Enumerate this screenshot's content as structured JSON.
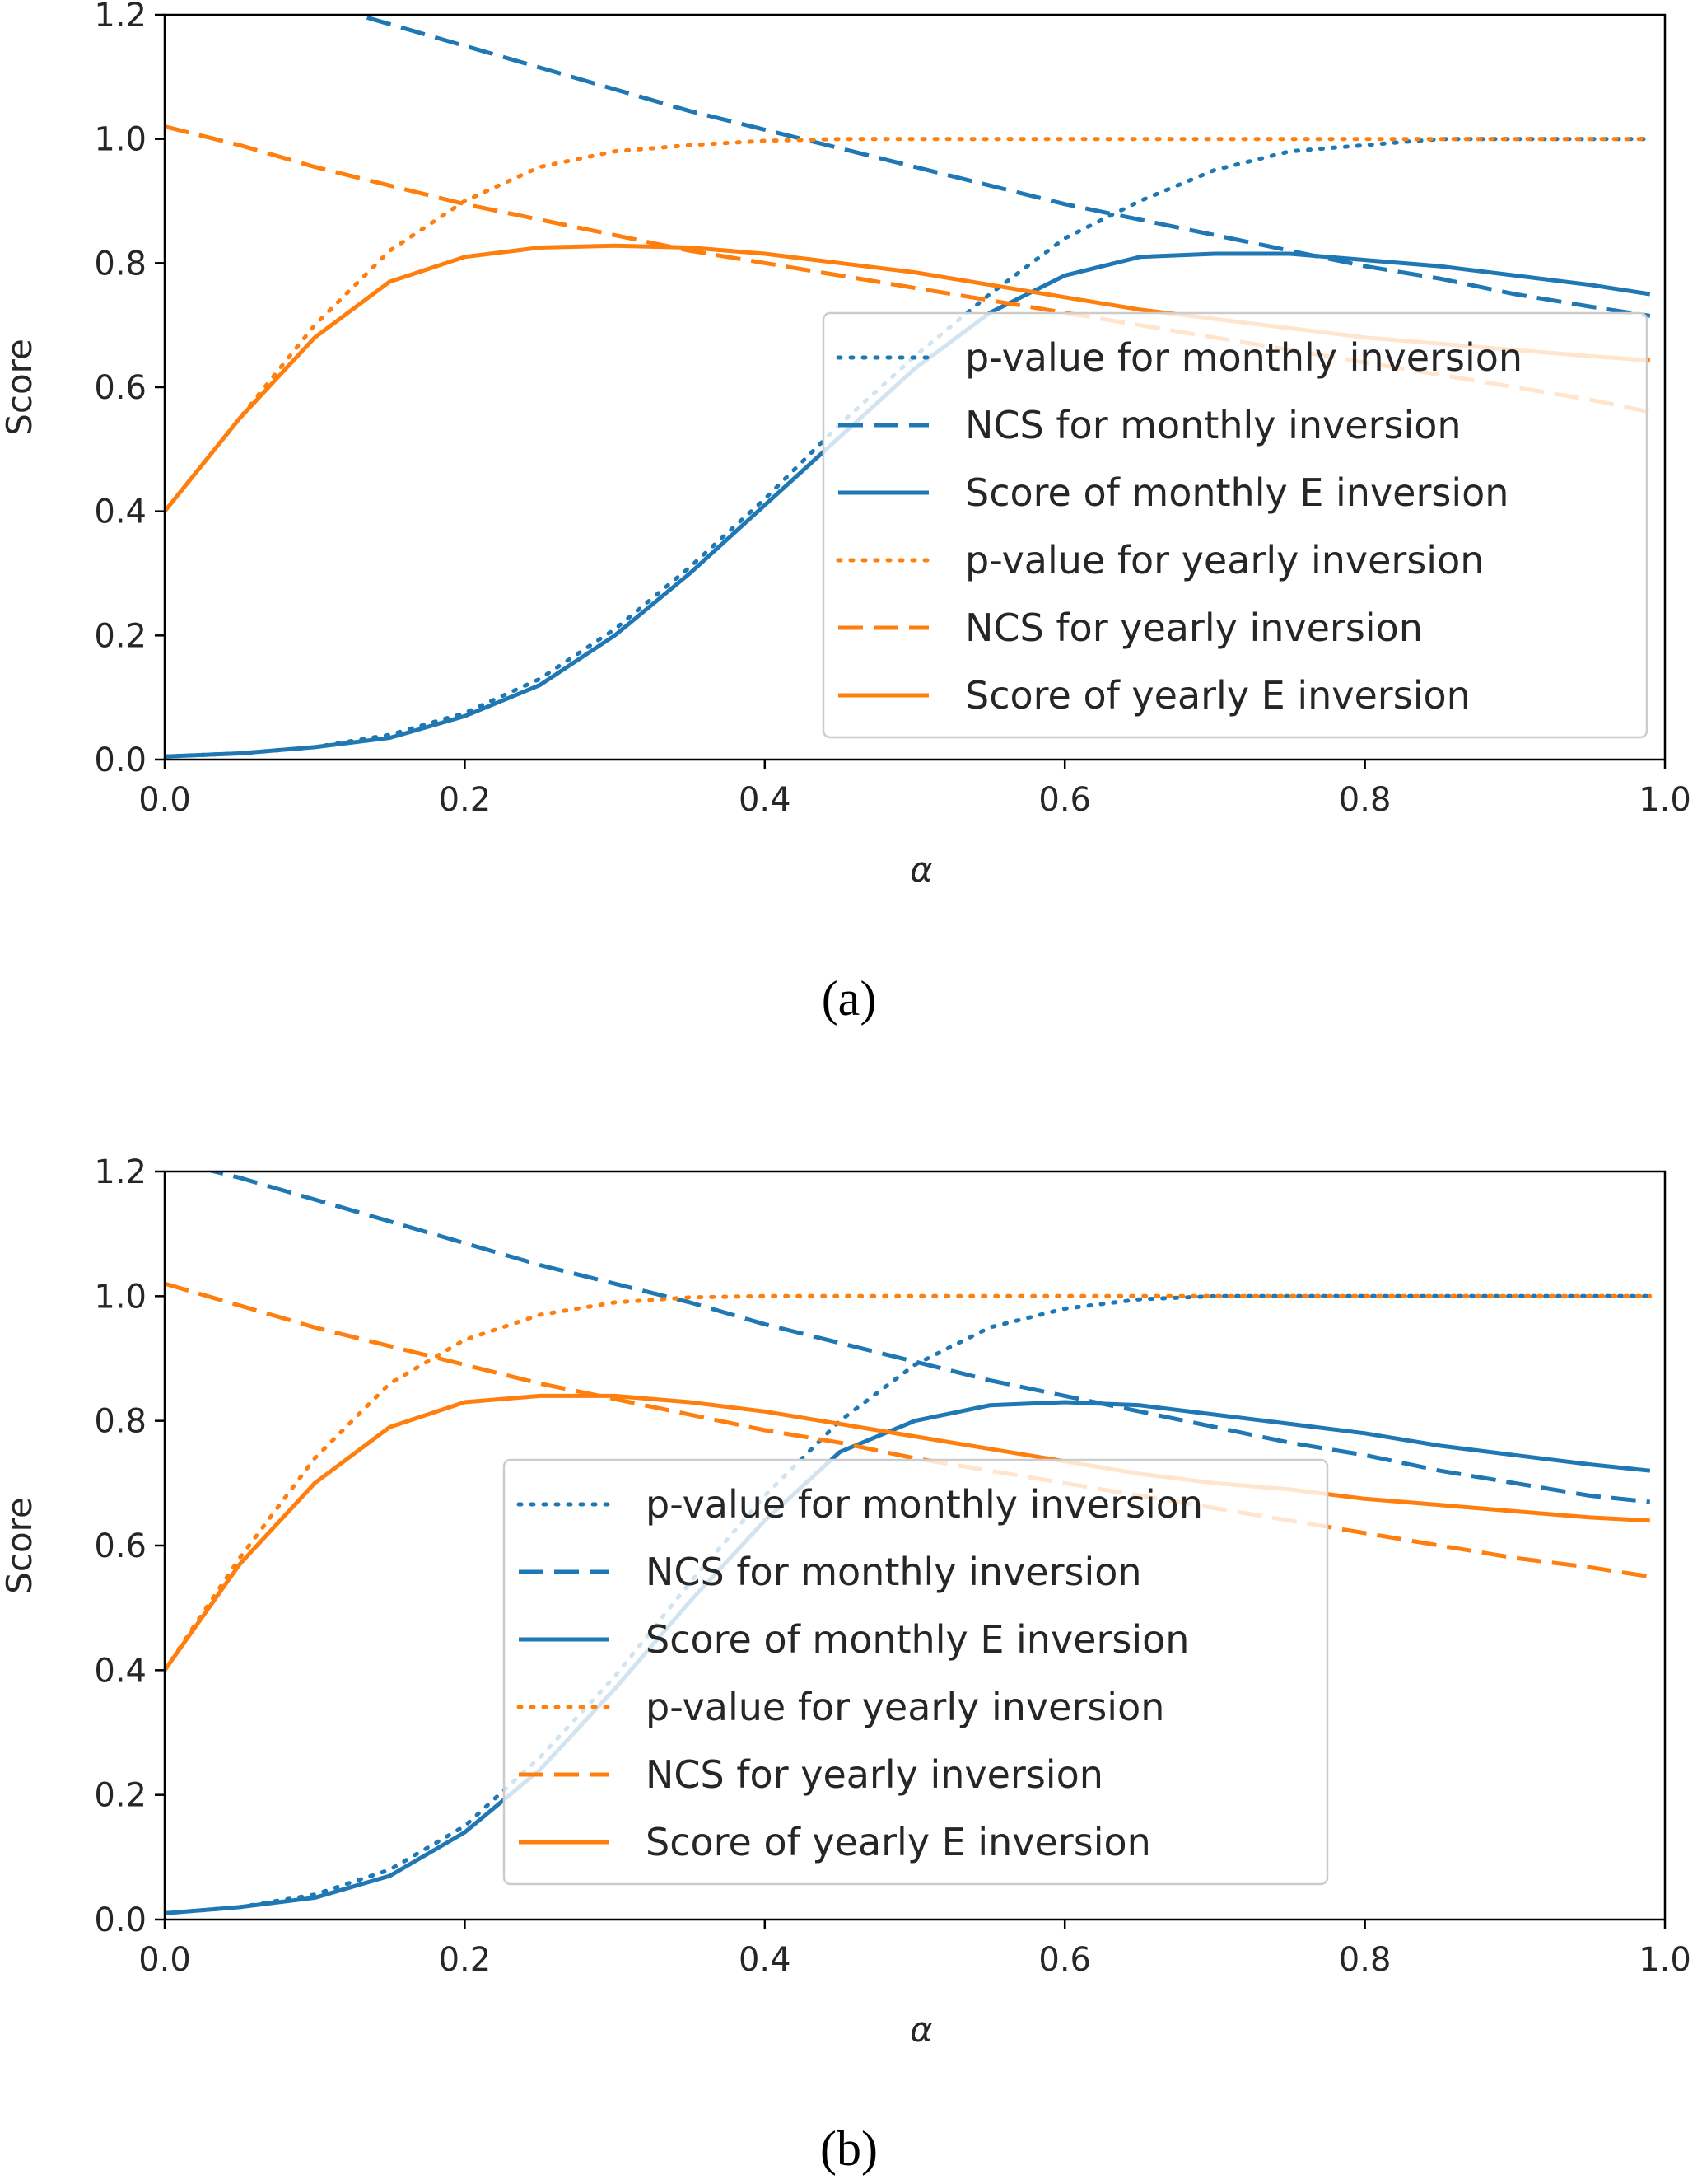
{
  "chart_data": [
    {
      "type": "line",
      "caption": "(a)",
      "xlabel": "α",
      "ylabel": "Score",
      "xlim": [
        0,
        1.0
      ],
      "ylim": [
        0,
        1.2
      ],
      "x_ticks": [
        "0.0",
        "0.2",
        "0.4",
        "0.6",
        "0.8",
        "1.0"
      ],
      "y_ticks": [
        "0.0",
        "0.2",
        "0.4",
        "0.6",
        "0.8",
        "1.0",
        "1.2"
      ],
      "grid": false,
      "legend_position": "lower-right",
      "x": [
        0.0,
        0.05,
        0.1,
        0.15,
        0.2,
        0.25,
        0.3,
        0.35,
        0.4,
        0.45,
        0.5,
        0.55,
        0.6,
        0.65,
        0.7,
        0.75,
        0.8,
        0.85,
        0.9,
        0.95,
        0.99
      ],
      "series": [
        {
          "name": "p-value for monthly inversion",
          "color": "#1f77b4",
          "style": "dotted",
          "values": [
            0.005,
            0.01,
            0.02,
            0.04,
            0.075,
            0.13,
            0.21,
            0.31,
            0.42,
            0.54,
            0.65,
            0.75,
            0.84,
            0.9,
            0.95,
            0.98,
            0.99,
            1.0,
            1.0,
            1.0,
            1.0
          ]
        },
        {
          "name": "NCS for monthly inversion",
          "color": "#1f77b4",
          "style": "dashed",
          "values": [
            1.3,
            1.26,
            1.22,
            1.185,
            1.15,
            1.115,
            1.08,
            1.045,
            1.015,
            0.985,
            0.955,
            0.925,
            0.895,
            0.87,
            0.845,
            0.82,
            0.795,
            0.775,
            0.75,
            0.73,
            0.715
          ]
        },
        {
          "name": "Score of monthly E inversion",
          "color": "#1f77b4",
          "style": "solid",
          "values": [
            0.005,
            0.01,
            0.02,
            0.035,
            0.07,
            0.12,
            0.2,
            0.3,
            0.41,
            0.52,
            0.63,
            0.72,
            0.78,
            0.81,
            0.815,
            0.815,
            0.805,
            0.795,
            0.78,
            0.765,
            0.75
          ]
        },
        {
          "name": "p-value for yearly inversion",
          "color": "#ff7f0e",
          "style": "dotted",
          "values": [
            0.4,
            0.55,
            0.7,
            0.82,
            0.9,
            0.955,
            0.98,
            0.99,
            0.997,
            1.0,
            1.0,
            1.0,
            1.0,
            1.0,
            1.0,
            1.0,
            1.0,
            1.0,
            1.0,
            1.0,
            1.0
          ]
        },
        {
          "name": "NCS for yearly inversion",
          "color": "#ff7f0e",
          "style": "dashed",
          "values": [
            1.02,
            0.99,
            0.955,
            0.925,
            0.895,
            0.87,
            0.845,
            0.82,
            0.8,
            0.78,
            0.76,
            0.74,
            0.72,
            0.7,
            0.68,
            0.66,
            0.64,
            0.62,
            0.6,
            0.58,
            0.56
          ]
        },
        {
          "name": "Score of yearly E inversion",
          "color": "#ff7f0e",
          "style": "solid",
          "values": [
            0.4,
            0.55,
            0.68,
            0.77,
            0.81,
            0.825,
            0.828,
            0.825,
            0.815,
            0.8,
            0.785,
            0.765,
            0.745,
            0.725,
            0.71,
            0.695,
            0.68,
            0.67,
            0.66,
            0.65,
            0.643
          ]
        }
      ]
    },
    {
      "type": "line",
      "caption": "(b)",
      "xlabel": "α",
      "ylabel": "Score",
      "xlim": [
        0,
        1.0
      ],
      "ylim": [
        0,
        1.2
      ],
      "x_ticks": [
        "0.0",
        "0.2",
        "0.4",
        "0.6",
        "0.8",
        "1.0"
      ],
      "y_ticks": [
        "0.0",
        "0.2",
        "0.4",
        "0.6",
        "0.8",
        "1.0",
        "1.2"
      ],
      "grid": false,
      "legend_position": "lower-center",
      "x": [
        0.0,
        0.05,
        0.1,
        0.15,
        0.2,
        0.25,
        0.3,
        0.35,
        0.4,
        0.45,
        0.5,
        0.55,
        0.6,
        0.65,
        0.7,
        0.75,
        0.8,
        0.85,
        0.9,
        0.95,
        0.99
      ],
      "series": [
        {
          "name": "p-value for monthly inversion",
          "color": "#1f77b4",
          "style": "dotted",
          "values": [
            0.01,
            0.02,
            0.04,
            0.08,
            0.15,
            0.26,
            0.39,
            0.54,
            0.68,
            0.8,
            0.89,
            0.95,
            0.98,
            0.995,
            1.0,
            1.0,
            1.0,
            1.0,
            1.0,
            1.0,
            1.0
          ]
        },
        {
          "name": "NCS for monthly inversion",
          "color": "#1f77b4",
          "style": "dashed",
          "values": [
            1.22,
            1.19,
            1.155,
            1.12,
            1.085,
            1.05,
            1.02,
            0.99,
            0.955,
            0.925,
            0.895,
            0.865,
            0.84,
            0.815,
            0.79,
            0.765,
            0.745,
            0.72,
            0.7,
            0.68,
            0.67
          ]
        },
        {
          "name": "Score of monthly E inversion",
          "color": "#1f77b4",
          "style": "solid",
          "values": [
            0.01,
            0.02,
            0.035,
            0.07,
            0.14,
            0.24,
            0.37,
            0.51,
            0.64,
            0.75,
            0.8,
            0.825,
            0.83,
            0.825,
            0.81,
            0.795,
            0.78,
            0.76,
            0.745,
            0.73,
            0.72
          ]
        },
        {
          "name": "p-value for yearly inversion",
          "color": "#ff7f0e",
          "style": "dotted",
          "values": [
            0.4,
            0.58,
            0.74,
            0.86,
            0.93,
            0.97,
            0.99,
            0.998,
            1.0,
            1.0,
            1.0,
            1.0,
            1.0,
            1.0,
            1.0,
            1.0,
            1.0,
            1.0,
            1.0,
            1.0,
            1.0
          ]
        },
        {
          "name": "NCS for yearly inversion",
          "color": "#ff7f0e",
          "style": "dashed",
          "values": [
            1.02,
            0.985,
            0.95,
            0.92,
            0.89,
            0.86,
            0.835,
            0.81,
            0.785,
            0.765,
            0.74,
            0.72,
            0.7,
            0.68,
            0.66,
            0.64,
            0.62,
            0.6,
            0.58,
            0.565,
            0.55
          ]
        },
        {
          "name": "Score of yearly E inversion",
          "color": "#ff7f0e",
          "style": "solid",
          "values": [
            0.4,
            0.57,
            0.7,
            0.79,
            0.83,
            0.84,
            0.84,
            0.83,
            0.815,
            0.795,
            0.775,
            0.755,
            0.735,
            0.715,
            0.7,
            0.69,
            0.675,
            0.665,
            0.655,
            0.645,
            0.64
          ]
        }
      ]
    }
  ]
}
